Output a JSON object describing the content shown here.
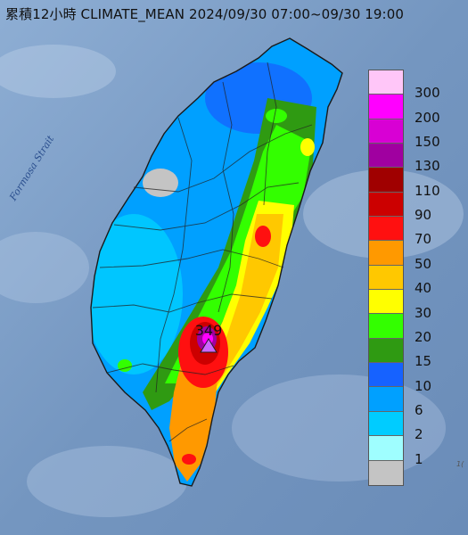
{
  "title": "累積12小時 CLIMATE_MEAN 2024/09/30 07:00~09/30 19:00",
  "sea_label": "Formosa Strait",
  "corner_label": "1(",
  "peak": {
    "value": "349"
  },
  "legend": {
    "levels": [
      {
        "color": "#ffc6f8",
        "label": "300"
      },
      {
        "color": "#ff00ff",
        "label": "200"
      },
      {
        "color": "#d800d4",
        "label": "150"
      },
      {
        "color": "#a000a0",
        "label": "130"
      },
      {
        "color": "#a00000",
        "label": "110"
      },
      {
        "color": "#cc0000",
        "label": "90"
      },
      {
        "color": "#ff1010",
        "label": "70"
      },
      {
        "color": "#ff9900",
        "label": "50"
      },
      {
        "color": "#ffc800",
        "label": "40"
      },
      {
        "color": "#ffff00",
        "label": "30"
      },
      {
        "color": "#33ff00",
        "label": "20"
      },
      {
        "color": "#2f9a12",
        "label": "15"
      },
      {
        "color": "#1662ff",
        "label": "10"
      },
      {
        "color": "#00a0ff",
        "label": "6"
      },
      {
        "color": "#00ccff",
        "label": "2"
      },
      {
        "color": "#9ffeff",
        "label": "1"
      },
      {
        "color": "#c4c4c4",
        "label": ""
      }
    ]
  },
  "colors": {
    "sea": "#7d9ec6",
    "gray": "#c4c4c4",
    "blue": "#1662ff",
    "lightblue": "#00a0ff",
    "cyan": "#00ccff",
    "darkgreen": "#2f9a12",
    "green": "#33ff00",
    "yellow": "#ffff00",
    "orange": "#ffc800",
    "darkorange": "#ff9900",
    "red": "#ff1010",
    "darkred": "#cc0000",
    "magenta": "#ff00ff",
    "purple": "#a000a0"
  }
}
